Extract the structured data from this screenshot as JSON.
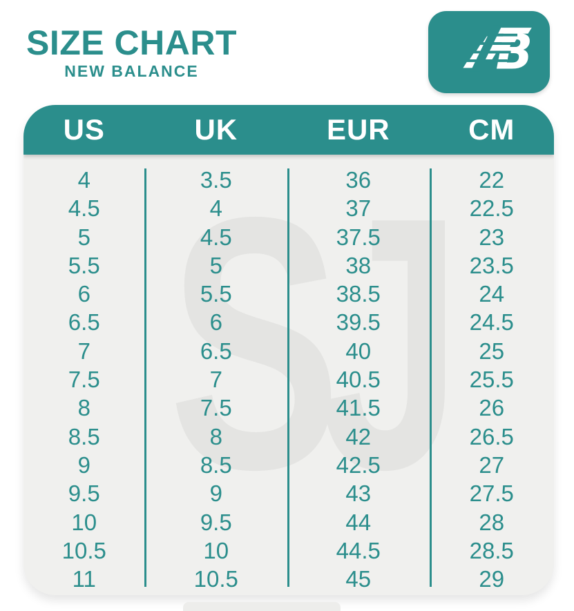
{
  "header": {
    "title": "SIZE CHART",
    "subtitle": "NEW BALANCE",
    "logo_icon": "new-balance-nb-logo",
    "logo_monogram_b": "B"
  },
  "watermark_text": "SJ",
  "colors": {
    "teal": "#2b8e8c",
    "card_bg": "#f0f0ee",
    "watermark": "#e4e4e2",
    "header_text": "#ffffff",
    "page_bg": "#ffffff"
  },
  "chart_data": {
    "type": "table",
    "title": "SIZE CHART",
    "subtitle": "NEW BALANCE",
    "columns": [
      "US",
      "UK",
      "EUR",
      "CM"
    ],
    "rows": [
      [
        "4",
        "3.5",
        "36",
        "22"
      ],
      [
        "4.5",
        "4",
        "37",
        "22.5"
      ],
      [
        "5",
        "4.5",
        "37.5",
        "23"
      ],
      [
        "5.5",
        "5",
        "38",
        "23.5"
      ],
      [
        "6",
        "5.5",
        "38.5",
        "24"
      ],
      [
        "6.5",
        "6",
        "39.5",
        "24.5"
      ],
      [
        "7",
        "6.5",
        "40",
        "25"
      ],
      [
        "7.5",
        "7",
        "40.5",
        "25.5"
      ],
      [
        "8",
        "7.5",
        "41.5",
        "26"
      ],
      [
        "8.5",
        "8",
        "42",
        "26.5"
      ],
      [
        "9",
        "8.5",
        "42.5",
        "27"
      ],
      [
        "9.5",
        "9",
        "43",
        "27.5"
      ],
      [
        "10",
        "9.5",
        "44",
        "28"
      ],
      [
        "10.5",
        "10",
        "44.5",
        "28.5"
      ],
      [
        "11",
        "10.5",
        "45",
        "29"
      ]
    ]
  }
}
